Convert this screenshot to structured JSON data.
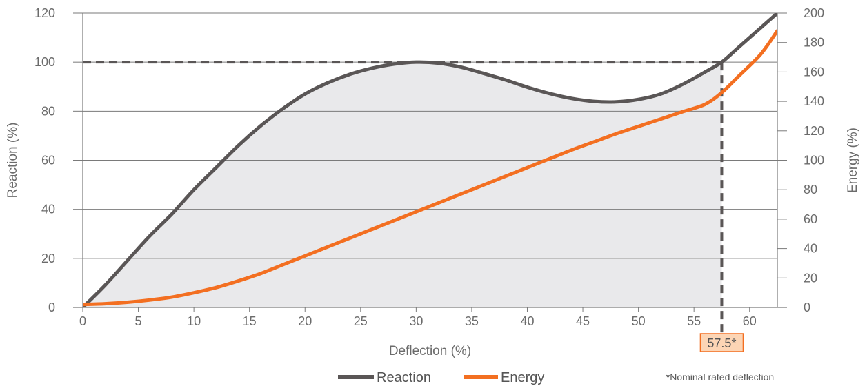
{
  "chart_data": {
    "type": "line",
    "xlabel": "Deflection (%)",
    "ylabel_left": "Reaction (%)",
    "ylabel_right": "Energy (%)",
    "xlim": [
      0,
      62.5
    ],
    "ylim_left": [
      0,
      120
    ],
    "ylim_right": [
      0,
      200
    ],
    "x_ticks": [
      "0",
      "5",
      "10",
      "15",
      "20",
      "25",
      "30",
      "35",
      "40",
      "45",
      "50",
      "55",
      "60"
    ],
    "y_left_ticks": [
      "0",
      "20",
      "40",
      "60",
      "80",
      "100",
      "120"
    ],
    "y_right_ticks": [
      "0",
      "20",
      "40",
      "60",
      "80",
      "100",
      "120",
      "140",
      "160",
      "180",
      "200"
    ],
    "grid": true,
    "series": [
      {
        "name": "Reaction",
        "axis": "left",
        "color": "#5a5656",
        "x": [
          0,
          2,
          4,
          6,
          8,
          10,
          12,
          14,
          16,
          18,
          20,
          22,
          24,
          26,
          28,
          30,
          32,
          34,
          36,
          38,
          40,
          42,
          44,
          46,
          48,
          50,
          52,
          54,
          56,
          57.5,
          59,
          61,
          62.5
        ],
        "y": [
          0,
          9,
          19,
          29,
          38,
          48,
          57,
          66,
          74,
          81,
          87,
          91.5,
          95,
          97.5,
          99.2,
          100,
          99.6,
          98,
          95.5,
          92.8,
          89.8,
          87.2,
          85.2,
          84,
          83.8,
          84.8,
          87,
          91,
          96,
          100,
          106,
          114,
          120
        ]
      },
      {
        "name": "Energy",
        "axis": "right",
        "color": "#f36f21",
        "x": [
          0,
          2,
          4,
          6,
          8,
          10,
          12,
          14,
          16,
          18,
          20,
          22,
          24,
          26,
          28,
          30,
          32,
          34,
          36,
          38,
          40,
          42,
          44,
          46,
          48,
          50,
          52,
          54,
          56,
          57.5,
          59,
          61,
          62.5
        ],
        "y": [
          2,
          2.5,
          3.5,
          5,
          7,
          10,
          13.5,
          18,
          23,
          29,
          35,
          41,
          47,
          53,
          59,
          65,
          71,
          77,
          83,
          89,
          95,
          101,
          107,
          112.5,
          118,
          123,
          128,
          133,
          138,
          146,
          157,
          172,
          188
        ]
      }
    ],
    "reference_line_value": 100,
    "nominal_rated_deflection": 57.5,
    "callout_label": "57.5*",
    "footnote": "*Nominal rated deflection",
    "legend_position": "bottom-center",
    "colors": {
      "reaction": "#5a5656",
      "energy": "#f36f21",
      "shaded_area": "#e9e9eb",
      "grid": "#7a7a7a",
      "callout_fill": "#fcd5b5",
      "callout_border": "#f36f21"
    }
  }
}
